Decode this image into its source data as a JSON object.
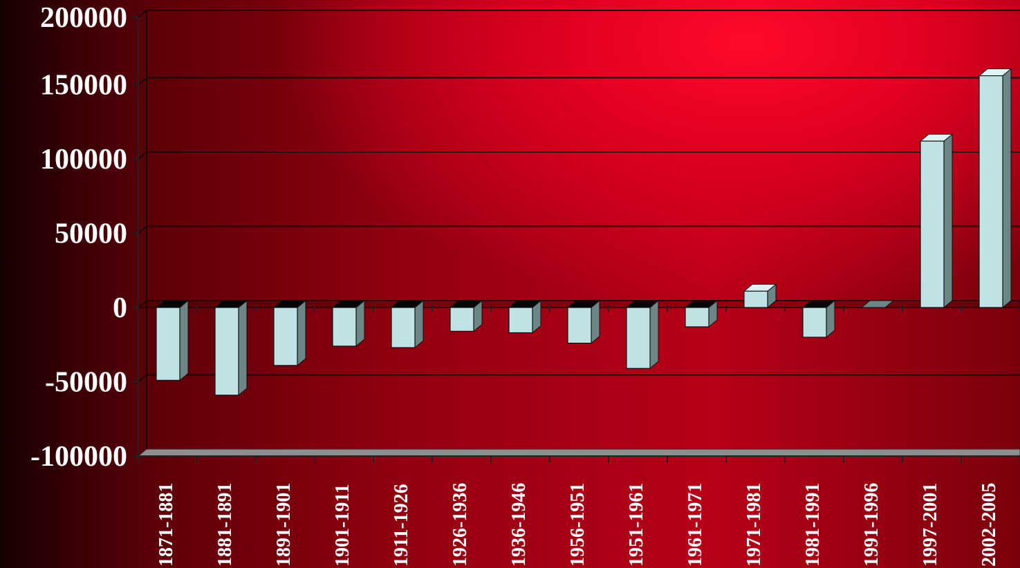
{
  "chart_data": {
    "type": "bar",
    "categories": [
      "1871-1881",
      "1881-1891",
      "1891-1901",
      "1901-1911",
      "1911-1926",
      "1926-1936",
      "1936-1946",
      "1956-1951",
      "1951-1961",
      "1961-1971",
      "1971-1981",
      "1981-1991",
      "1991-1996",
      "1997-2001",
      "2002-2005"
    ],
    "values": [
      -49000,
      -59000,
      -39000,
      -26000,
      -27000,
      -16000,
      -17000,
      -24000,
      -41000,
      -13000,
      11000,
      -20000,
      0,
      112000,
      156000
    ],
    "title": "",
    "xlabel": "",
    "ylabel": "",
    "ylim": [
      -100000,
      200000
    ],
    "yticks": [
      200000,
      150000,
      100000,
      50000,
      0,
      -50000,
      -100000
    ],
    "ytick_labels": [
      "200000",
      "150000",
      "100000",
      "50000",
      "0",
      "-50000",
      "-100000"
    ],
    "grid": true,
    "legend": "none",
    "colors": {
      "bar_front": "#bfe3e5",
      "bar_side": "#6c8587",
      "bar_top": "#dff3f4",
      "bar_top_negative": "#050505",
      "grid": "#1a0000",
      "text": "#ffffff"
    }
  }
}
